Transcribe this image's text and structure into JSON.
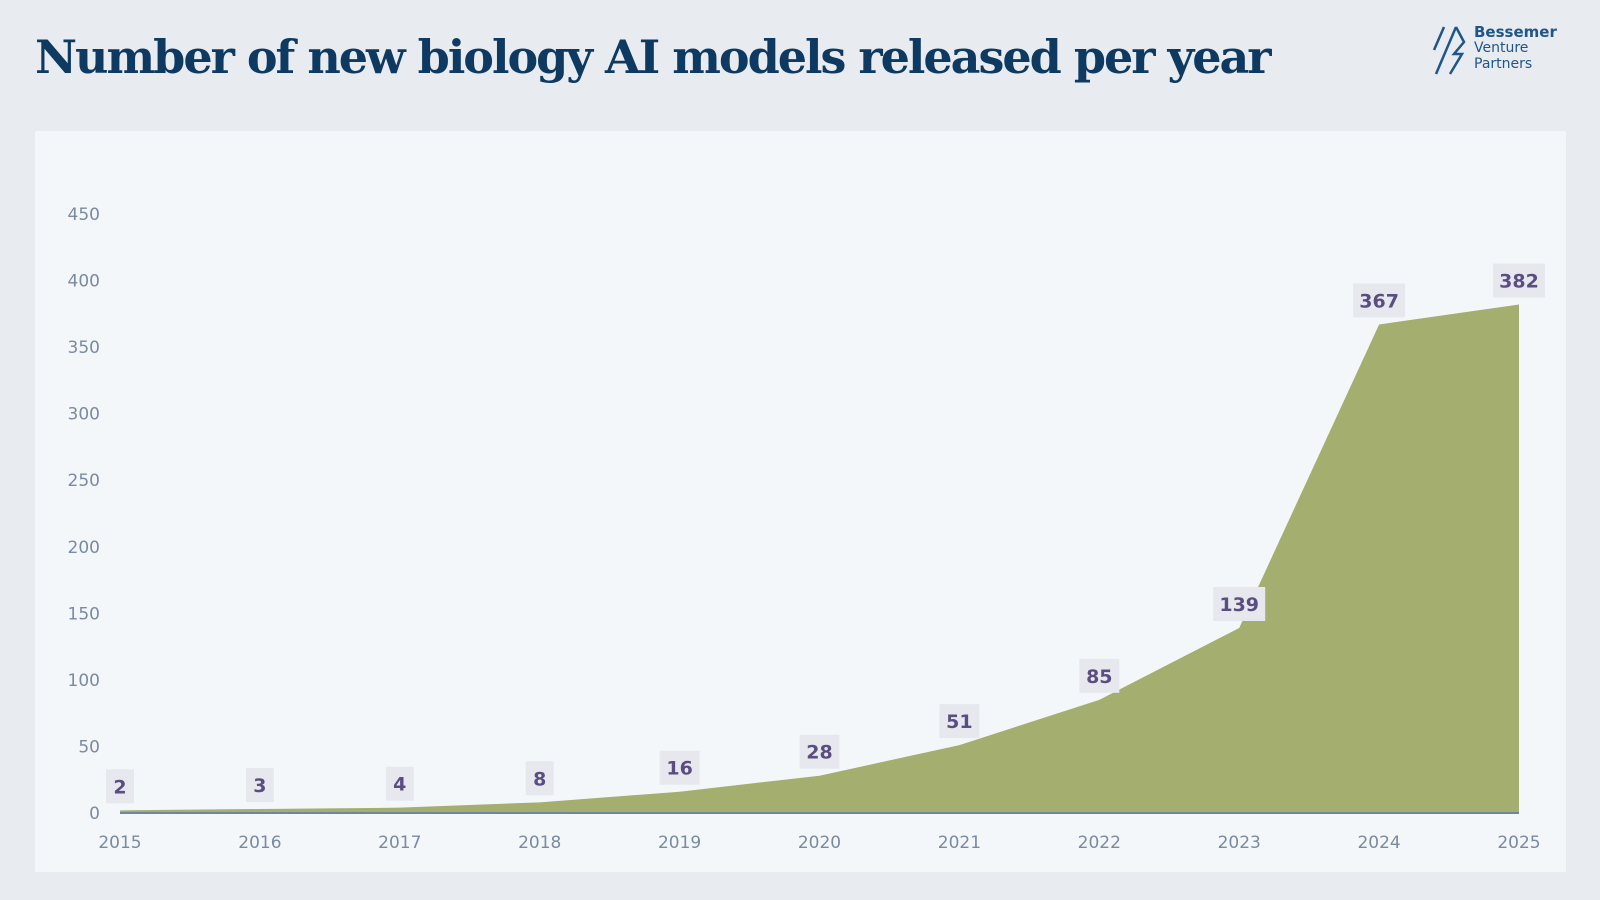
{
  "header": {
    "title": "Number of new biology AI models released per year"
  },
  "logo": {
    "line1": "Bessemer",
    "line2": "Venture",
    "line3": "Partners"
  },
  "chart_data": {
    "type": "area",
    "title": "Number of new biology AI models released per year",
    "categories": [
      "2015",
      "2016",
      "2017",
      "2018",
      "2019",
      "2020",
      "2021",
      "2022",
      "2023",
      "2024",
      "2025"
    ],
    "values": [
      2,
      3,
      4,
      8,
      16,
      28,
      51,
      85,
      139,
      367,
      382
    ],
    "data_labels": [
      "2",
      "3",
      "4",
      "8",
      "16",
      "28",
      "51",
      "85",
      "139",
      "367",
      "382"
    ],
    "yticks": [
      0,
      50,
      100,
      150,
      200,
      250,
      300,
      350,
      400,
      450
    ],
    "ylim": [
      0,
      450
    ],
    "xlabel": "",
    "ylabel": "",
    "grid": false,
    "colors": {
      "fill": "#a4ae6f",
      "baseline": "#6f86a0",
      "label_text": "#5b4d82",
      "label_bg": "#e6e8ee"
    }
  }
}
